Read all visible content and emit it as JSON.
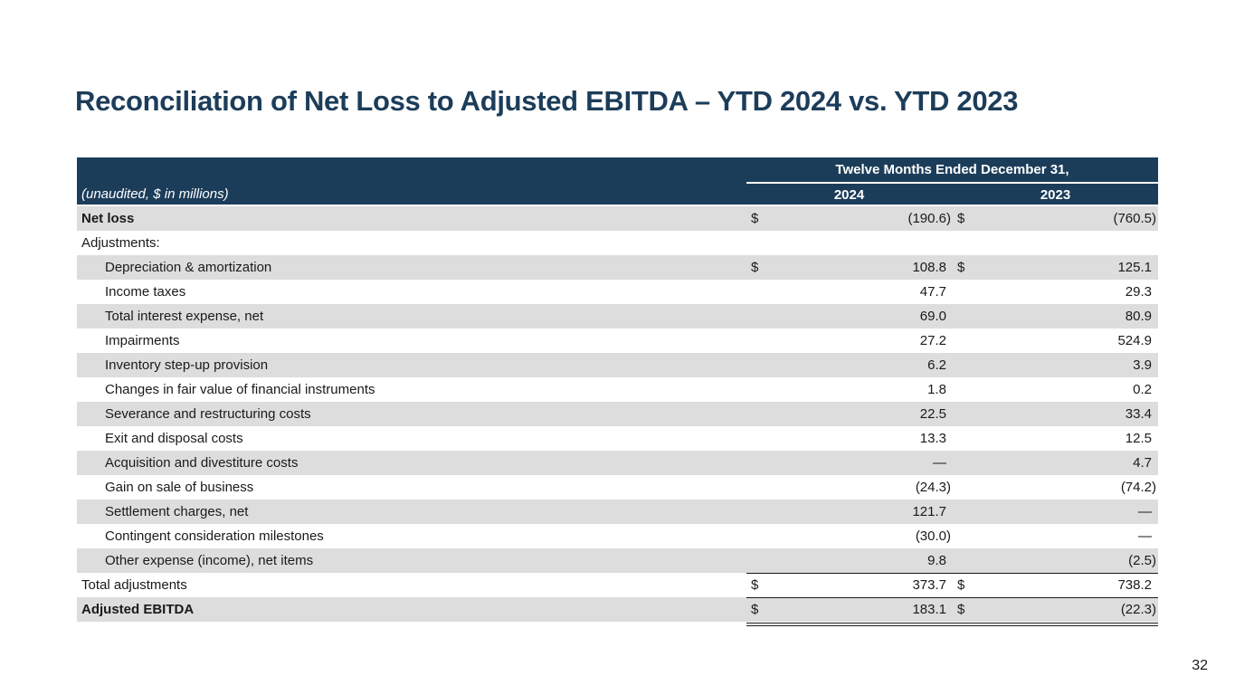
{
  "title": "Reconciliation of Net Loss to Adjusted EBITDA – YTD 2024 vs. YTD 2023",
  "page_number": "32",
  "table": {
    "units_label": "(unaudited, $ in millions)",
    "period_header": "Twelve Months Ended December 31,",
    "col1": "2024",
    "col2": "2023",
    "rows": [
      {
        "label": "Net loss",
        "d1": "$",
        "v1": "(190.6)",
        "d2": "$",
        "v2": "(760.5)"
      },
      {
        "label": "Adjustments:",
        "d1": "",
        "v1": "",
        "d2": "",
        "v2": ""
      },
      {
        "label": "Depreciation & amortization",
        "d1": "$",
        "v1": "108.8",
        "d2": "$",
        "v2": "125.1"
      },
      {
        "label": "Income taxes",
        "d1": "",
        "v1": "47.7",
        "d2": "",
        "v2": "29.3"
      },
      {
        "label": "Total interest expense, net",
        "d1": "",
        "v1": "69.0",
        "d2": "",
        "v2": "80.9"
      },
      {
        "label": "Impairments",
        "d1": "",
        "v1": "27.2",
        "d2": "",
        "v2": "524.9"
      },
      {
        "label": "Inventory step-up provision",
        "d1": "",
        "v1": "6.2",
        "d2": "",
        "v2": "3.9"
      },
      {
        "label": "Changes in fair value of financial instruments",
        "d1": "",
        "v1": "1.8",
        "d2": "",
        "v2": "0.2"
      },
      {
        "label": "Severance and restructuring costs",
        "d1": "",
        "v1": "22.5",
        "d2": "",
        "v2": "33.4"
      },
      {
        "label": "Exit and disposal costs",
        "d1": "",
        "v1": "13.3",
        "d2": "",
        "v2": "12.5"
      },
      {
        "label": "Acquisition and divestiture costs",
        "d1": "",
        "v1": "—",
        "d2": "",
        "v2": "4.7"
      },
      {
        "label": "Gain on sale of business",
        "d1": "",
        "v1": "(24.3)",
        "d2": "",
        "v2": "(74.2)"
      },
      {
        "label": "Settlement charges, net",
        "d1": "",
        "v1": "121.7",
        "d2": "",
        "v2": "—"
      },
      {
        "label": "Contingent consideration milestones",
        "d1": "",
        "v1": "(30.0)",
        "d2": "",
        "v2": "—"
      },
      {
        "label": "Other expense (income), net items",
        "d1": "",
        "v1": "9.8",
        "d2": "",
        "v2": "(2.5)"
      },
      {
        "label": "Total adjustments",
        "d1": "$",
        "v1": "373.7",
        "d2": "$",
        "v2": "738.2"
      },
      {
        "label": "Adjusted EBITDA",
        "d1": "$",
        "v1": "183.1",
        "d2": "$",
        "v2": "(22.3)"
      }
    ]
  }
}
